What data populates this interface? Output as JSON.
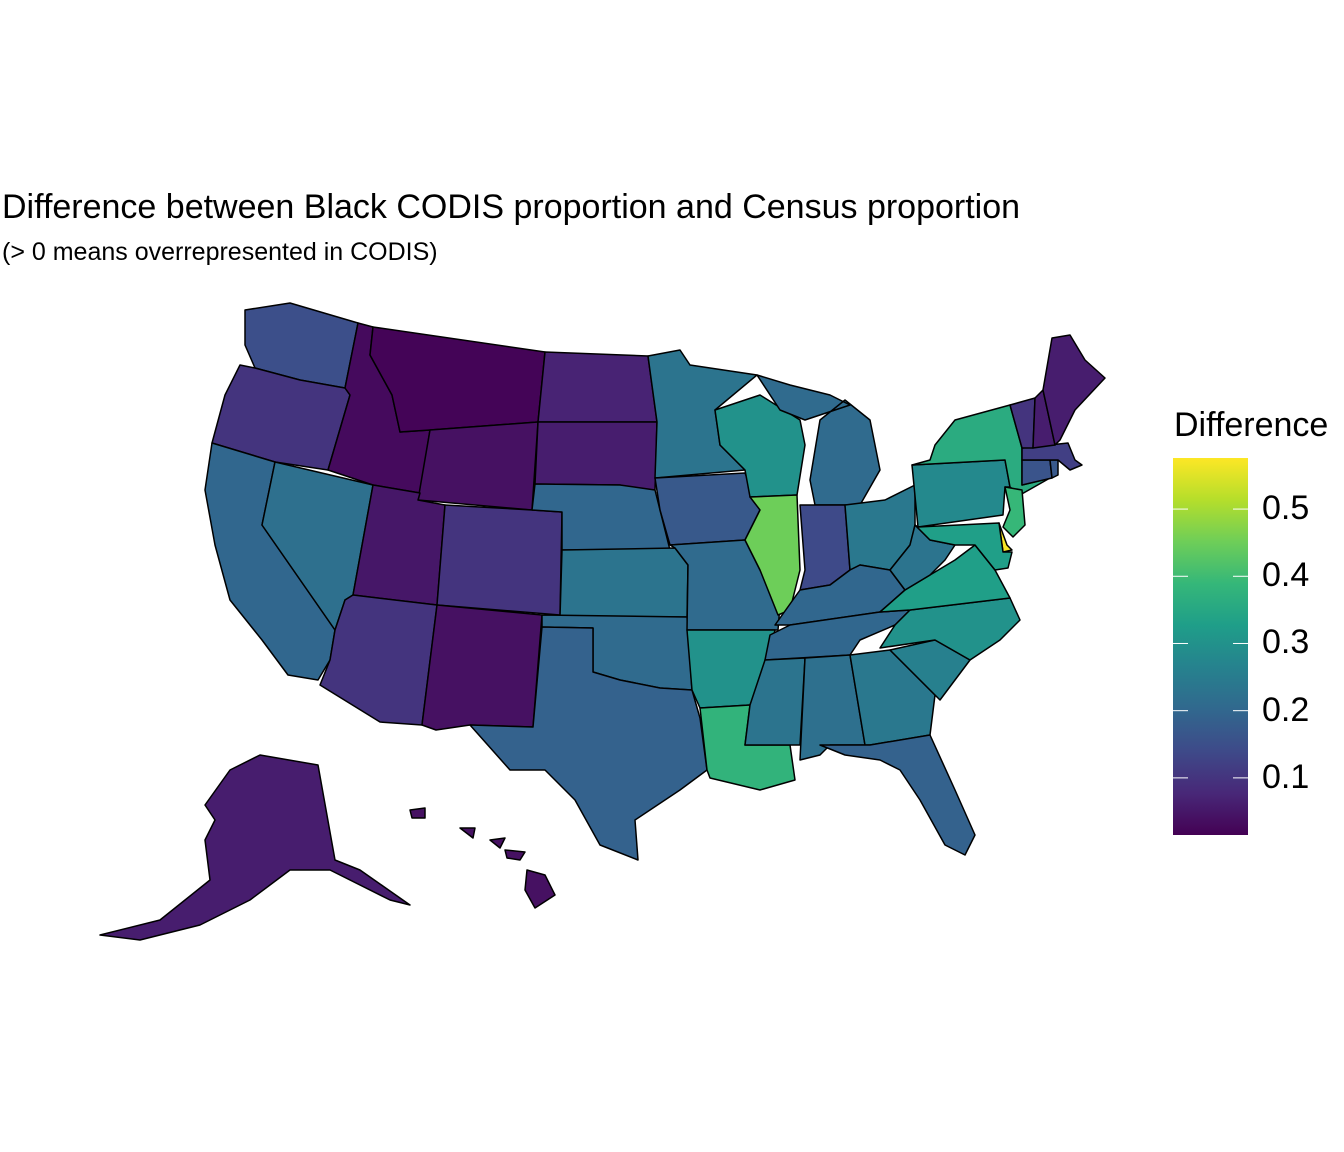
{
  "title": "Difference between Black CODIS proportion and Census proportion",
  "subtitle": "(> 0 means overrepresented in CODIS)",
  "chart_data": {
    "type": "choropleth",
    "title": "Difference between Black CODIS proportion and Census proportion",
    "subtitle": "(> 0 means overrepresented in CODIS)",
    "legend": {
      "title": "Difference",
      "placement": "right",
      "colormap": "viridis",
      "range": [
        0.015,
        0.576
      ],
      "ticks": [
        0.1,
        0.2,
        0.3,
        0.4,
        0.5
      ],
      "tick_labels": [
        "0.1",
        "0.2",
        "0.3",
        "0.4",
        "0.5"
      ]
    },
    "values": {
      "WA": 0.15,
      "OR": 0.1,
      "CA": 0.2,
      "NV": 0.22,
      "ID": 0.03,
      "MT": 0.02,
      "WY": 0.04,
      "UT": 0.05,
      "AZ": 0.1,
      "CO": 0.1,
      "NM": 0.04,
      "ND": 0.07,
      "SD": 0.06,
      "NE": 0.2,
      "KS": 0.23,
      "OK": 0.21,
      "TX": 0.19,
      "MN": 0.23,
      "IA": 0.17,
      "MO": 0.21,
      "AR": 0.3,
      "LA": 0.38,
      "WI": 0.3,
      "IL": 0.45,
      "MI": 0.21,
      "IN": 0.14,
      "OH": 0.24,
      "KY": 0.2,
      "TN": 0.2,
      "MS": 0.23,
      "AL": 0.22,
      "GA": 0.24,
      "FL": 0.19,
      "SC": 0.26,
      "NC": 0.3,
      "VA": 0.33,
      "WV": 0.23,
      "PA": 0.28,
      "NY": 0.36,
      "NJ": 0.39,
      "DE": 0.57,
      "MD": 0.33,
      "CT": 0.16,
      "RI": 0.17,
      "MA": 0.12,
      "VT": 0.1,
      "NH": 0.06,
      "ME": 0.06,
      "AK": 0.06,
      "HI": 0.04
    }
  }
}
